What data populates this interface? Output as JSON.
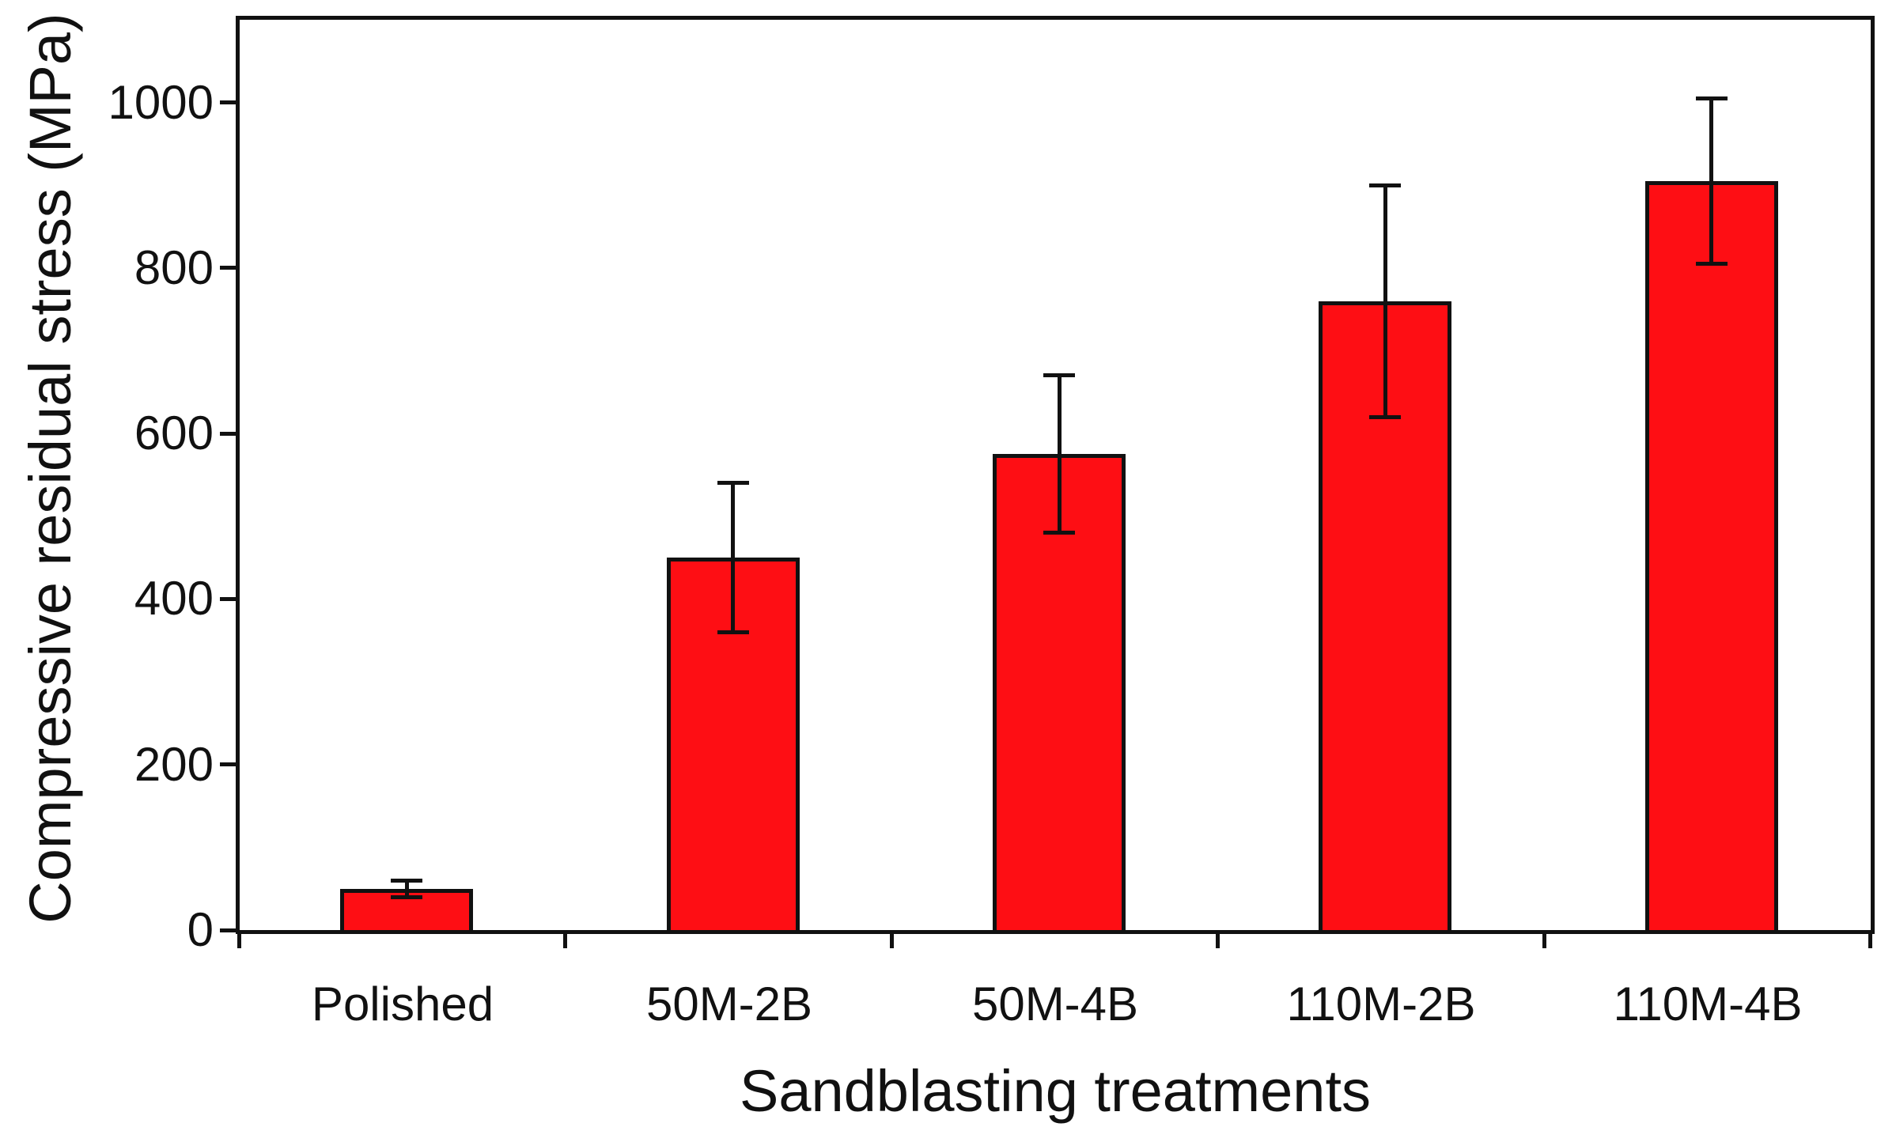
{
  "chart_data": {
    "type": "bar",
    "title": "",
    "xlabel": "Sandblasting treatments",
    "ylabel": "Compressive residual stress (MPa)",
    "categories": [
      "Polished",
      "50M-2B",
      "50M-4B",
      "110M-2B",
      "110M-4B"
    ],
    "values": [
      50,
      450,
      575,
      760,
      905
    ],
    "errors": [
      10,
      90,
      95,
      140,
      100
    ],
    "units": "MPa",
    "ylim": [
      0,
      1100
    ],
    "yticks": [
      0,
      200,
      400,
      600,
      800,
      1000
    ],
    "grid": false,
    "legend": null,
    "bar_color": "#fe0e14",
    "bar_border_color": "#111111",
    "error_bar_color": "#111111",
    "axis_color": "#111111",
    "background_color": "#ffffff"
  }
}
